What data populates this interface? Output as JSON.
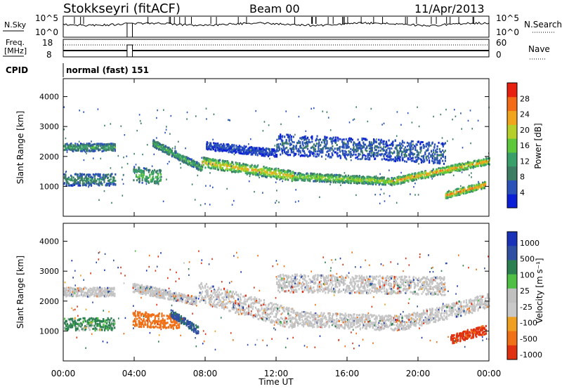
{
  "header": {
    "station": "Stokkseyri (fitACF)",
    "beam": "Beam 00",
    "date": "11/Apr/2013"
  },
  "side_labels": {
    "nsky": "N.Sky",
    "freq_line1": "Freq.",
    "freq_line2": "[MHz]",
    "cpid": "CPID",
    "nsearch": "N.Search",
    "nave": "Nave"
  },
  "cpid_text": "normal (fast) 151",
  "noise_panel": {
    "left_ticks": [
      "10^5",
      "10^0"
    ],
    "right_ticks": [
      "10^5",
      "10^0"
    ]
  },
  "freq_panel": {
    "left_ticks": [
      "18",
      "8"
    ],
    "right_ticks": [
      "60",
      "0"
    ]
  },
  "colors": {
    "power_scale": [
      "#0b1fd6",
      "#2a52b8",
      "#3d7d64",
      "#3aa06a",
      "#5cc83a",
      "#b6cf2a",
      "#f0a51d",
      "#f36b17",
      "#e8200f"
    ],
    "velocity_scale": [
      "#1a32b8",
      "#2f4fa2",
      "#2b7f50",
      "#4fc044",
      "#c0c0c0",
      "#c9c9c9",
      "#f0a020",
      "#f07018",
      "#e03010"
    ]
  },
  "chart_data": [
    {
      "type": "heatmap",
      "title": "Power",
      "xlabel": "Time UT",
      "ylabel": "Slant Range [km]",
      "x_ticks": [
        "00:00",
        "04:00",
        "08:00",
        "12:00",
        "16:00",
        "20:00",
        "00:00"
      ],
      "xlim": [
        0,
        24
      ],
      "y_ticks": [
        "1000",
        "2000",
        "3000",
        "4000"
      ],
      "ylim": [
        0,
        4600
      ],
      "colorbar_label": "Power [dB]",
      "colorbar_ticks": [
        "4",
        "8",
        "12",
        "16",
        "20",
        "24",
        "28"
      ],
      "colorbar_range": [
        0,
        32
      ],
      "data_gap_hours": [
        3.6,
        3.9
      ],
      "bands": [
        {
          "t0": 0.0,
          "t1": 2.9,
          "r0": 2300,
          "r1": 2300,
          "width": 260,
          "level": 12
        },
        {
          "t0": 0.0,
          "t1": 2.9,
          "r0": 1220,
          "r1": 1220,
          "width": 400,
          "level": 10
        },
        {
          "t0": 3.9,
          "t1": 5.5,
          "r0": 1400,
          "r1": 1300,
          "width": 500,
          "level": 16
        },
        {
          "t0": 5.0,
          "t1": 7.8,
          "r0": 2450,
          "r1": 1600,
          "width": 240,
          "level": 14
        },
        {
          "t0": 7.8,
          "t1": 13.0,
          "r0": 1800,
          "r1": 1330,
          "width": 340,
          "level": 24
        },
        {
          "t0": 13.0,
          "t1": 18.5,
          "r0": 1330,
          "r1": 1160,
          "width": 260,
          "level": 20
        },
        {
          "t0": 18.5,
          "t1": 24.0,
          "r0": 1160,
          "r1": 1850,
          "width": 240,
          "level": 26
        },
        {
          "t0": 12.0,
          "t1": 21.5,
          "r0": 2400,
          "r1": 2100,
          "width": 700,
          "level": 6
        },
        {
          "t0": 8.0,
          "t1": 12.0,
          "r0": 2350,
          "r1": 2100,
          "width": 260,
          "level": 4
        },
        {
          "t0": 21.5,
          "t1": 23.8,
          "r0": 700,
          "r1": 1050,
          "width": 220,
          "level": 28
        }
      ]
    },
    {
      "type": "heatmap",
      "title": "Velocity",
      "xlabel": "Time UT",
      "ylabel": "Slant Range [km]",
      "x_ticks": [
        "00:00",
        "04:00",
        "08:00",
        "12:00",
        "16:00",
        "20:00",
        "00:00"
      ],
      "xlim": [
        0,
        24
      ],
      "y_ticks": [
        "1000",
        "2000",
        "3000",
        "4000"
      ],
      "ylim": [
        0,
        4600
      ],
      "colorbar_label": "Velocity [m s⁻¹]",
      "colorbar_ticks": [
        "1000",
        "500",
        "100",
        "25",
        "-25",
        "-100",
        "-500",
        "-1000"
      ],
      "data_gap_hours": [
        3.6,
        3.9
      ],
      "bands": [
        {
          "t0": 0.0,
          "t1": 2.9,
          "r0": 2300,
          "r1": 2300,
          "width": 300,
          "level": 0
        },
        {
          "t0": 0.0,
          "t1": 2.9,
          "r0": 1220,
          "r1": 1220,
          "width": 420,
          "level": 120
        },
        {
          "t0": 3.9,
          "t1": 7.5,
          "r0": 2450,
          "r1": 2000,
          "width": 300,
          "level": 0
        },
        {
          "t0": 3.9,
          "t1": 6.5,
          "r0": 1400,
          "r1": 1300,
          "width": 500,
          "level": -300
        },
        {
          "t0": 6.0,
          "t1": 7.6,
          "r0": 1600,
          "r1": 1000,
          "width": 260,
          "level": 400
        },
        {
          "t0": 7.6,
          "t1": 13.0,
          "r0": 2300,
          "r1": 1400,
          "width": 700,
          "level": 0
        },
        {
          "t0": 13.0,
          "t1": 19.0,
          "r0": 1400,
          "r1": 1250,
          "width": 500,
          "level": 0
        },
        {
          "t0": 19.0,
          "t1": 24.0,
          "r0": 1250,
          "r1": 2000,
          "width": 500,
          "level": 0
        },
        {
          "t0": 12.0,
          "t1": 21.5,
          "r0": 2600,
          "r1": 2500,
          "width": 600,
          "level": 0
        },
        {
          "t0": 21.8,
          "t1": 23.8,
          "r0": 700,
          "r1": 1050,
          "width": 300,
          "level": -600
        }
      ]
    }
  ]
}
